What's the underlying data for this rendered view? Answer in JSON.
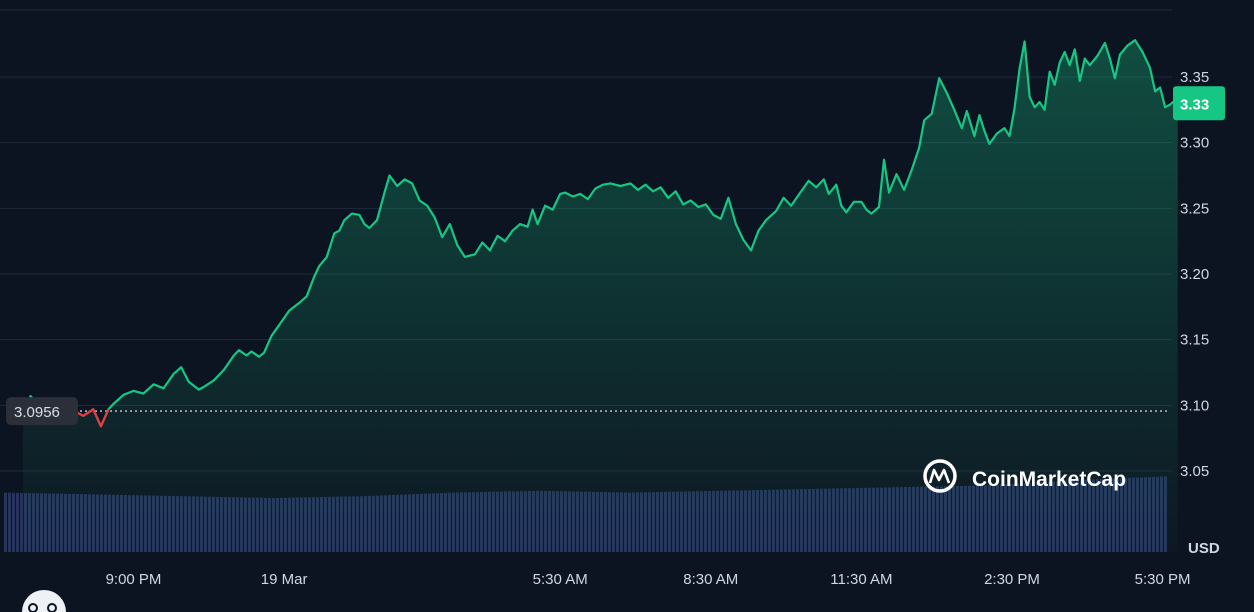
{
  "chart_data": {
    "type": "line",
    "currency": "USD",
    "y_ticks": [
      "3.35",
      "3.30",
      "3.25",
      "3.20",
      "3.15",
      "3.10",
      "3.05"
    ],
    "y_tick_values": [
      3.35,
      3.3,
      3.25,
      3.2,
      3.15,
      3.1,
      3.05
    ],
    "ylim": [
      3.0,
      3.4
    ],
    "x_ticks": [
      "9:00 PM",
      "19 Mar",
      "5:30 AM",
      "8:30 AM",
      "11:30 AM",
      "2:30 PM",
      "5:30 PM"
    ],
    "x_tick_hours": [
      2.5,
      5.5,
      11,
      14,
      17,
      20,
      23
    ],
    "xlim": [
      0,
      23.5
    ],
    "reference_price": 3.0956,
    "reference_label": "3.0956",
    "current_price": 3.33,
    "current_label": "3.33",
    "brand": "CoinMarketCap",
    "series": [
      {
        "points": [
          [
            0.3,
            3.095
          ],
          [
            0.45,
            3.107
          ],
          [
            0.6,
            3.1
          ],
          [
            1.0,
            3.098
          ],
          [
            1.3,
            3.096
          ],
          [
            1.5,
            3.092
          ],
          [
            1.7,
            3.097
          ],
          [
            1.85,
            3.084
          ],
          [
            2.0,
            3.097
          ],
          [
            2.1,
            3.101
          ],
          [
            2.3,
            3.108
          ],
          [
            2.5,
            3.111
          ],
          [
            2.7,
            3.109
          ],
          [
            2.9,
            3.116
          ],
          [
            3.1,
            3.113
          ],
          [
            3.3,
            3.124
          ],
          [
            3.45,
            3.129
          ],
          [
            3.6,
            3.118
          ],
          [
            3.8,
            3.112
          ],
          [
            3.9,
            3.114
          ],
          [
            4.1,
            3.119
          ],
          [
            4.3,
            3.127
          ],
          [
            4.5,
            3.138
          ],
          [
            4.6,
            3.142
          ],
          [
            4.75,
            3.138
          ],
          [
            4.85,
            3.141
          ],
          [
            5.0,
            3.137
          ],
          [
            5.1,
            3.14
          ],
          [
            5.25,
            3.153
          ],
          [
            5.4,
            3.161
          ],
          [
            5.6,
            3.172
          ],
          [
            5.8,
            3.178
          ],
          [
            5.95,
            3.183
          ],
          [
            6.1,
            3.198
          ],
          [
            6.2,
            3.206
          ],
          [
            6.35,
            3.213
          ],
          [
            6.5,
            3.231
          ],
          [
            6.6,
            3.233
          ],
          [
            6.7,
            3.241
          ],
          [
            6.85,
            3.246
          ],
          [
            7.0,
            3.245
          ],
          [
            7.1,
            3.238
          ],
          [
            7.2,
            3.235
          ],
          [
            7.35,
            3.241
          ],
          [
            7.5,
            3.262
          ],
          [
            7.6,
            3.275
          ],
          [
            7.75,
            3.267
          ],
          [
            7.9,
            3.272
          ],
          [
            8.05,
            3.269
          ],
          [
            8.2,
            3.256
          ],
          [
            8.35,
            3.252
          ],
          [
            8.5,
            3.243
          ],
          [
            8.65,
            3.228
          ],
          [
            8.8,
            3.238
          ],
          [
            8.95,
            3.222
          ],
          [
            9.1,
            3.213
          ],
          [
            9.3,
            3.215
          ],
          [
            9.45,
            3.224
          ],
          [
            9.6,
            3.218
          ],
          [
            9.75,
            3.229
          ],
          [
            9.9,
            3.225
          ],
          [
            10.05,
            3.233
          ],
          [
            10.2,
            3.238
          ],
          [
            10.35,
            3.236
          ],
          [
            10.45,
            3.249
          ],
          [
            10.55,
            3.238
          ],
          [
            10.7,
            3.252
          ],
          [
            10.85,
            3.249
          ],
          [
            11.0,
            3.261
          ],
          [
            11.1,
            3.262
          ],
          [
            11.25,
            3.259
          ],
          [
            11.4,
            3.261
          ],
          [
            11.55,
            3.257
          ],
          [
            11.7,
            3.265
          ],
          [
            11.85,
            3.268
          ],
          [
            12.0,
            3.269
          ],
          [
            12.2,
            3.267
          ],
          [
            12.4,
            3.269
          ],
          [
            12.55,
            3.264
          ],
          [
            12.7,
            3.268
          ],
          [
            12.85,
            3.263
          ],
          [
            13.0,
            3.266
          ],
          [
            13.15,
            3.258
          ],
          [
            13.3,
            3.263
          ],
          [
            13.45,
            3.253
          ],
          [
            13.6,
            3.256
          ],
          [
            13.75,
            3.251
          ],
          [
            13.9,
            3.253
          ],
          [
            14.05,
            3.245
          ],
          [
            14.2,
            3.242
          ],
          [
            14.35,
            3.258
          ],
          [
            14.5,
            3.238
          ],
          [
            14.65,
            3.226
          ],
          [
            14.8,
            3.218
          ],
          [
            14.95,
            3.233
          ],
          [
            15.1,
            3.241
          ],
          [
            15.3,
            3.248
          ],
          [
            15.45,
            3.258
          ],
          [
            15.6,
            3.252
          ],
          [
            15.8,
            3.263
          ],
          [
            15.95,
            3.271
          ],
          [
            16.1,
            3.266
          ],
          [
            16.25,
            3.272
          ],
          [
            16.35,
            3.261
          ],
          [
            16.5,
            3.268
          ],
          [
            16.6,
            3.252
          ],
          [
            16.7,
            3.247
          ],
          [
            16.85,
            3.255
          ],
          [
            17.0,
            3.255
          ],
          [
            17.1,
            3.249
          ],
          [
            17.2,
            3.246
          ],
          [
            17.35,
            3.251
          ],
          [
            17.45,
            3.287
          ],
          [
            17.55,
            3.262
          ],
          [
            17.7,
            3.276
          ],
          [
            17.85,
            3.264
          ],
          [
            18.0,
            3.279
          ],
          [
            18.15,
            3.296
          ],
          [
            18.25,
            3.317
          ],
          [
            18.4,
            3.322
          ],
          [
            18.55,
            3.349
          ],
          [
            18.7,
            3.338
          ],
          [
            18.85,
            3.325
          ],
          [
            19.0,
            3.311
          ],
          [
            19.1,
            3.324
          ],
          [
            19.25,
            3.305
          ],
          [
            19.35,
            3.321
          ],
          [
            19.45,
            3.309
          ],
          [
            19.55,
            3.299
          ],
          [
            19.7,
            3.307
          ],
          [
            19.85,
            3.311
          ],
          [
            19.95,
            3.305
          ],
          [
            20.05,
            3.326
          ],
          [
            20.15,
            3.356
          ],
          [
            20.25,
            3.377
          ],
          [
            20.35,
            3.335
          ],
          [
            20.45,
            3.327
          ],
          [
            20.55,
            3.331
          ],
          [
            20.65,
            3.325
          ],
          [
            20.75,
            3.354
          ],
          [
            20.85,
            3.344
          ],
          [
            20.95,
            3.361
          ],
          [
            21.05,
            3.369
          ],
          [
            21.15,
            3.359
          ],
          [
            21.25,
            3.371
          ],
          [
            21.35,
            3.347
          ],
          [
            21.45,
            3.364
          ],
          [
            21.55,
            3.359
          ],
          [
            21.7,
            3.366
          ],
          [
            21.85,
            3.376
          ],
          [
            21.95,
            3.364
          ],
          [
            22.05,
            3.349
          ],
          [
            22.15,
            3.367
          ],
          [
            22.3,
            3.374
          ],
          [
            22.45,
            3.378
          ],
          [
            22.6,
            3.369
          ],
          [
            22.75,
            3.357
          ],
          [
            22.85,
            3.339
          ],
          [
            22.95,
            3.342
          ],
          [
            23.05,
            3.327
          ],
          [
            23.15,
            3.329
          ],
          [
            23.3,
            3.334
          ]
        ]
      }
    ],
    "volume": {
      "relative_heights": [
        0.66,
        0.64,
        0.62,
        0.6,
        0.62,
        0.66,
        0.68,
        0.66,
        0.68,
        0.7,
        0.72,
        0.74,
        0.8,
        0.84
      ]
    },
    "grid": true
  },
  "colors": {
    "background": "#0d1421",
    "line_up": "#16c784",
    "line_down": "#ea3943",
    "grid": "#1f2a3c",
    "volume": "#27335a",
    "badge": "#16c784",
    "ref_badge": "#2a2f3a"
  },
  "icons": {
    "brand_logo": "coinmarketcap-logo-icon"
  }
}
